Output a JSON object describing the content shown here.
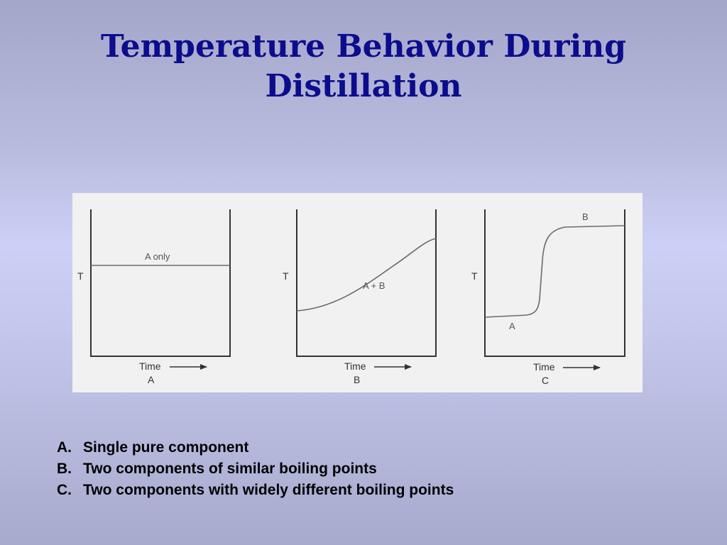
{
  "title": {
    "line1": "Temperature Behavior During",
    "line2": "Distillation"
  },
  "colors": {
    "title": "#0c0c8c",
    "figure_background": "#f1f1f1",
    "axis": "#333333",
    "curve": "#6a6a6a"
  },
  "panels": [
    {
      "y_axis_label": "T",
      "x_axis_label": "Time",
      "arrow": "right-arrow",
      "panel_letter": "A",
      "curve_label": "A only",
      "curve_shape": "flat"
    },
    {
      "y_axis_label": "T",
      "x_axis_label": "Time",
      "arrow": "right-arrow",
      "panel_letter": "B",
      "curve_label": "A + B",
      "curve_shape": "gradual-rise"
    },
    {
      "y_axis_label": "T",
      "x_axis_label": "Time",
      "arrow": "right-arrow",
      "panel_letter": "C",
      "curve_labels": [
        "A",
        "B"
      ],
      "curve_shape": "step"
    }
  ],
  "legend": [
    {
      "letter": "A.",
      "text": "Single pure component"
    },
    {
      "letter": "B.",
      "text": "Two components of similar boiling points"
    },
    {
      "letter": "C.",
      "text": "Two components with widely different boiling points"
    }
  ]
}
